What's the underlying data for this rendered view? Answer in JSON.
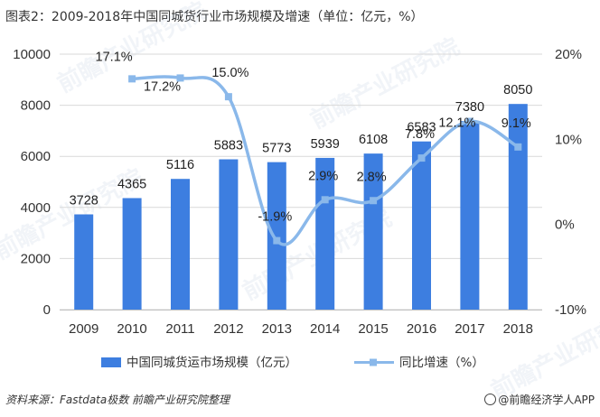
{
  "title": "图表2：2009-2018年中国同城货行业市场规模及增速（单位：亿元，%）",
  "source": "资料来源：Fastdata极数 前瞻产业研究院整理",
  "brand": "@前瞻经济学人APP",
  "watermark": "前瞻产业研究院",
  "colors": {
    "bar": "#3d7ee0",
    "line": "#8ab8ea",
    "grid": "#d9d9d9"
  },
  "chart_data": {
    "type": "bar",
    "categories": [
      "2009",
      "2010",
      "2011",
      "2012",
      "2013",
      "2014",
      "2015",
      "2016",
      "2017",
      "2018"
    ],
    "series": [
      {
        "name": "中国同城货运市场规模（亿元）",
        "type": "bar",
        "axis": "left",
        "values": [
          3728,
          4365,
          5116,
          5883,
          5773,
          5939,
          6108,
          6583,
          7380,
          8050
        ],
        "labels": [
          "3728",
          "4365",
          "5116",
          "5883",
          "5773",
          "5939",
          "6108",
          "6583",
          "7380",
          "8050"
        ]
      },
      {
        "name": "同比增速（%）",
        "type": "line",
        "axis": "right",
        "values": [
          null,
          17.1,
          17.2,
          15.0,
          -1.9,
          2.9,
          2.8,
          7.8,
          12.1,
          9.1
        ],
        "labels": [
          "",
          "17.1%",
          "17.2%",
          "15.0%",
          "-1.9%",
          "2.9%",
          "2.8%",
          "7.8%",
          "12.1%",
          "9.1%"
        ]
      }
    ],
    "y_left": {
      "range": [
        0,
        10000
      ],
      "ticks": [
        "0",
        "2000",
        "4000",
        "6000",
        "8000",
        "10000"
      ]
    },
    "y_right": {
      "range": [
        -10,
        20
      ],
      "ticks": [
        "-10%",
        "0%",
        "10%",
        "20%"
      ]
    },
    "grid": true,
    "legend_position": "bottom"
  }
}
